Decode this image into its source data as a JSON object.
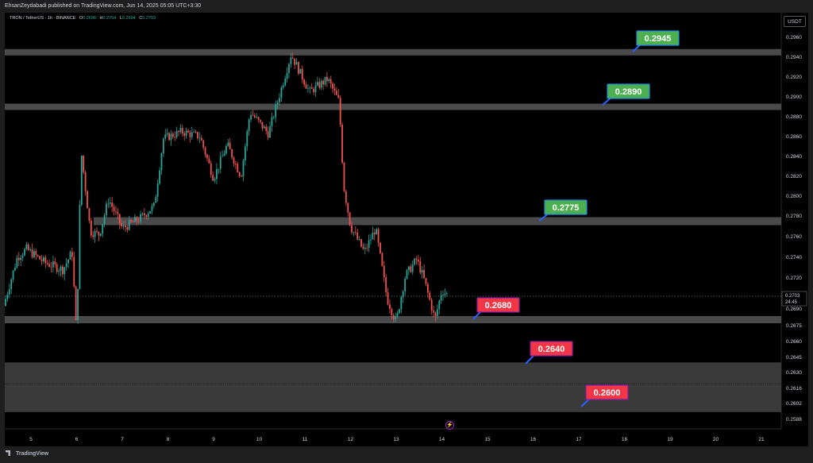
{
  "header": {
    "published_by": "EhsanZeydabadi published on TradingView.com, Jun 14, 2025 05:05 UTC+3:30"
  },
  "legend": {
    "symbol": "TRON / TetherUS · 1h · BINANCE",
    "open_label": "O",
    "open": "0.2696",
    "high_label": "H",
    "high": "0.2704",
    "low_label": "L",
    "low": "0.2694",
    "close_label": "C",
    "close": "0.2703"
  },
  "currency_button": "USDT",
  "price_tag": {
    "price": "0.2703",
    "countdown": "24:45"
  },
  "branding": "TradingView",
  "colors": {
    "up": "#26a69a",
    "down": "#ef5350",
    "zone": "#4a4a4a",
    "label_green": "#4caf50",
    "label_red": "#f23645",
    "arrow": "#2962ff"
  },
  "chart_data": {
    "type": "candlestick",
    "title": "",
    "x_axis": {
      "tick_labels": [
        "5",
        "6",
        "7",
        "8",
        "9",
        "10",
        "11",
        "12",
        "13",
        "14",
        "15",
        "16",
        "17",
        "18",
        "19",
        "20",
        "21"
      ]
    },
    "y_axis": {
      "tick_labels": [
        "0.2960",
        "0.2940",
        "0.2920",
        "0.2900",
        "0.2880",
        "0.2860",
        "0.2840",
        "0.2820",
        "0.2800",
        "0.2780",
        "0.2760",
        "0.2740",
        "0.2720",
        "0.2690",
        "0.2675",
        "0.2660",
        "0.2645",
        "0.2630",
        "0.2616",
        "0.2602",
        "0.2588"
      ],
      "scale": "non-linear price scale",
      "range": [
        0.2581,
        0.2971
      ]
    },
    "grid": false,
    "levels": [
      {
        "label": "0.2945",
        "value": 0.2945,
        "kind": "resistance"
      },
      {
        "label": "0.2890",
        "value": 0.289,
        "kind": "resistance"
      },
      {
        "label": "0.2775",
        "value": 0.2775,
        "kind": "resistance"
      },
      {
        "label": "0.2680",
        "value": 0.268,
        "kind": "support"
      },
      {
        "label": "0.2640",
        "value": 0.264,
        "kind": "support"
      },
      {
        "label": "0.2600",
        "value": 0.26,
        "kind": "support"
      }
    ],
    "price_path": [
      {
        "day": 4.4,
        "price": 0.2693
      },
      {
        "day": 4.7,
        "price": 0.274
      },
      {
        "day": 4.9,
        "price": 0.2748
      },
      {
        "day": 5.3,
        "price": 0.2735
      },
      {
        "day": 5.7,
        "price": 0.2728
      },
      {
        "day": 5.9,
        "price": 0.2745
      },
      {
        "day": 6.0,
        "price": 0.2665
      },
      {
        "day": 6.1,
        "price": 0.2845
      },
      {
        "day": 6.3,
        "price": 0.2765
      },
      {
        "day": 6.5,
        "price": 0.2762
      },
      {
        "day": 6.7,
        "price": 0.2797
      },
      {
        "day": 7.0,
        "price": 0.2768
      },
      {
        "day": 7.4,
        "price": 0.2778
      },
      {
        "day": 7.7,
        "price": 0.279
      },
      {
        "day": 7.9,
        "price": 0.2858
      },
      {
        "day": 8.3,
        "price": 0.2865
      },
      {
        "day": 8.7,
        "price": 0.286
      },
      {
        "day": 9.0,
        "price": 0.2818
      },
      {
        "day": 9.3,
        "price": 0.2852
      },
      {
        "day": 9.6,
        "price": 0.282
      },
      {
        "day": 9.8,
        "price": 0.2885
      },
      {
        "day": 10.2,
        "price": 0.2863
      },
      {
        "day": 10.4,
        "price": 0.2895
      },
      {
        "day": 10.7,
        "price": 0.2943
      },
      {
        "day": 11.1,
        "price": 0.2905
      },
      {
        "day": 11.5,
        "price": 0.2918
      },
      {
        "day": 11.75,
        "price": 0.2895
      },
      {
        "day": 11.85,
        "price": 0.281
      },
      {
        "day": 12.0,
        "price": 0.277
      },
      {
        "day": 12.3,
        "price": 0.2745
      },
      {
        "day": 12.55,
        "price": 0.2768
      },
      {
        "day": 12.8,
        "price": 0.27
      },
      {
        "day": 13.0,
        "price": 0.2678
      },
      {
        "day": 13.2,
        "price": 0.2722
      },
      {
        "day": 13.45,
        "price": 0.2738
      },
      {
        "day": 13.6,
        "price": 0.272
      },
      {
        "day": 13.85,
        "price": 0.268
      },
      {
        "day": 14.0,
        "price": 0.2708
      },
      {
        "day": 14.15,
        "price": 0.2703
      }
    ]
  }
}
